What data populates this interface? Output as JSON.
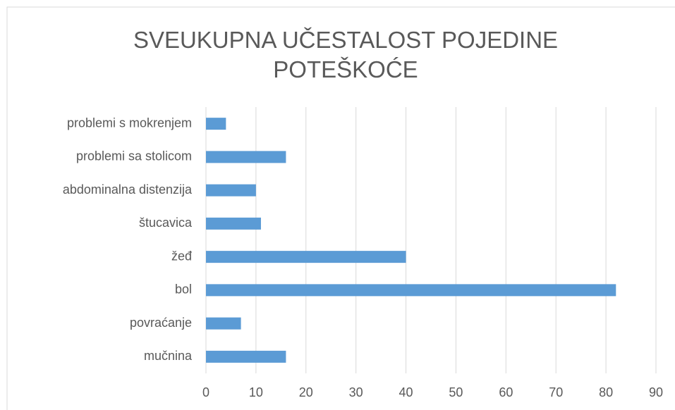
{
  "chart_data": {
    "type": "bar",
    "orientation": "horizontal",
    "title": "SVEUKUPNA UČESTALOST POJEDINE POTEŠKOĆE",
    "categories": [
      "problemi s mokrenjem",
      "problemi sa stolicom",
      "abdominalna distenzija",
      "štucavica",
      "žeđ",
      "bol",
      "povraćanje",
      "mučnina"
    ],
    "values": [
      4,
      16,
      10,
      11,
      40,
      82,
      7,
      16
    ],
    "color": "#5b9bd5",
    "xlim": [
      0,
      90
    ],
    "xticks": [
      0,
      10,
      20,
      30,
      40,
      50,
      60,
      70,
      80,
      90
    ],
    "grid": true
  }
}
